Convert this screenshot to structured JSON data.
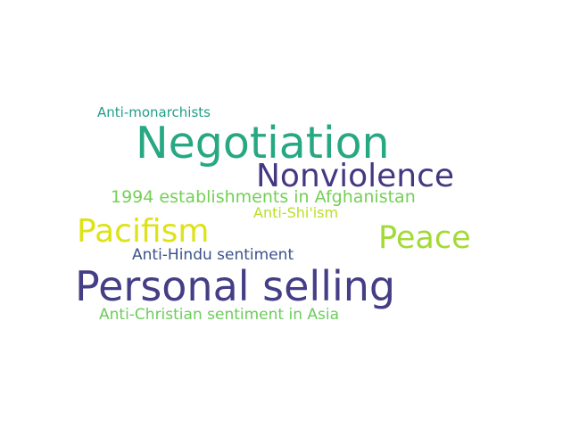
{
  "word_cloud": {
    "background": "#ffffff",
    "words": [
      {
        "id": "negotiation",
        "text": "Negotiation",
        "color": "#27a882"
      },
      {
        "id": "nonviolence",
        "text": "Nonviolence",
        "color": "#453781"
      },
      {
        "id": "personal_selling",
        "text": "Personal selling",
        "color": "#433e85"
      },
      {
        "id": "pacifism",
        "text": "Pacifism",
        "color": "#dde318"
      },
      {
        "id": "peace",
        "text": "Peace",
        "color": "#a2da37"
      },
      {
        "id": "establishments_1994",
        "text": "1994 establishments in Afghanistan",
        "color": "#73d055"
      },
      {
        "id": "anti_shiism",
        "text": "Anti-Shi'ism",
        "color": "#bade28"
      },
      {
        "id": "anti_hindu",
        "text": "Anti-Hindu sentiment",
        "color": "#3b528b"
      },
      {
        "id": "anti_christian",
        "text": "Anti-Christian sentiment in Asia",
        "color": "#6ccd5a"
      },
      {
        "id": "anti_monarchists",
        "text": "Anti-monarchists",
        "color": "#1f9e89"
      }
    ]
  }
}
